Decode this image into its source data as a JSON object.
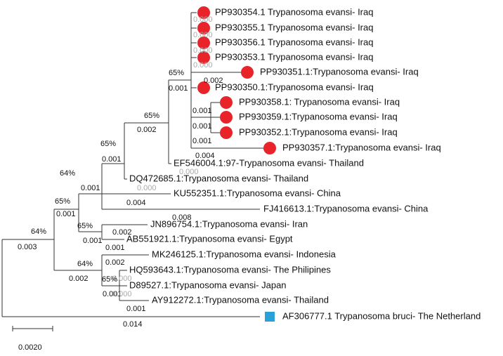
{
  "leaves": [
    "PP930354.1 Trypanosoma evansi- Iraq",
    "PP930355.1 Trypanosoma evansi- Iraq",
    "PP930356.1 Trypanosoma evansi- Iraq",
    "PP930353.1 Trypanosoma evansi- Iraq",
    "PP930351.1:Trypanosoma evansi- Iraq",
    "PP930350.1:Trypanosoma evansi- Iraq",
    "PP930358.1: Trypanosoma evansi- Iraq",
    "PP930359.1:Trypanosoma evansi- Iraq",
    "PP930352.1:Trypanosoma evansi- Iraq",
    "PP930357.1:Trypanosoma evansi- Iraq",
    "EF546004.1:97-Trypanosoma evansi- Thailand",
    "DQ472685.1:Trypanosoma evansi- Thailand",
    "KU552351.1:Trypanosoma evansi- China",
    "FJ416613.1:Trypanosoma evansi- China",
    "JN896754.1:Trypanosoma evansi- Iran",
    "AB551921.1:Trypanosoma evansi- Egypt",
    "MK246125.1:Trypanosoma evansi- Indonesia",
    "HQ593643.1:Trypanosoma evansi- The Philipines",
    "D89527.1:Trypanosoma evansi- Japan",
    "AY912272.1:Trypanosoma evansi- Thailand",
    "AF306777.1 Trypanosoma bruci- The Netherland"
  ],
  "branch_lengths": [
    "0.000",
    "0.000",
    "0.000",
    "0.000",
    "0.002",
    "0.001",
    "0.001",
    "0.001",
    "0.001",
    "0.004",
    "0.000",
    "0.002",
    "0.001",
    "0.000",
    "0.004",
    "0.008",
    "0.001",
    "0.001",
    "0.002",
    "0.001",
    "0.001",
    "0.003",
    "0.002",
    "0.000",
    "0.002",
    "0.001",
    "0.000",
    "0.001",
    "0.014"
  ],
  "bootstrap": [
    "65%",
    "65%",
    "65%",
    "64%",
    "65%",
    "65%",
    "64%",
    "64%",
    "65%"
  ],
  "scale_bar": "0.0020"
}
